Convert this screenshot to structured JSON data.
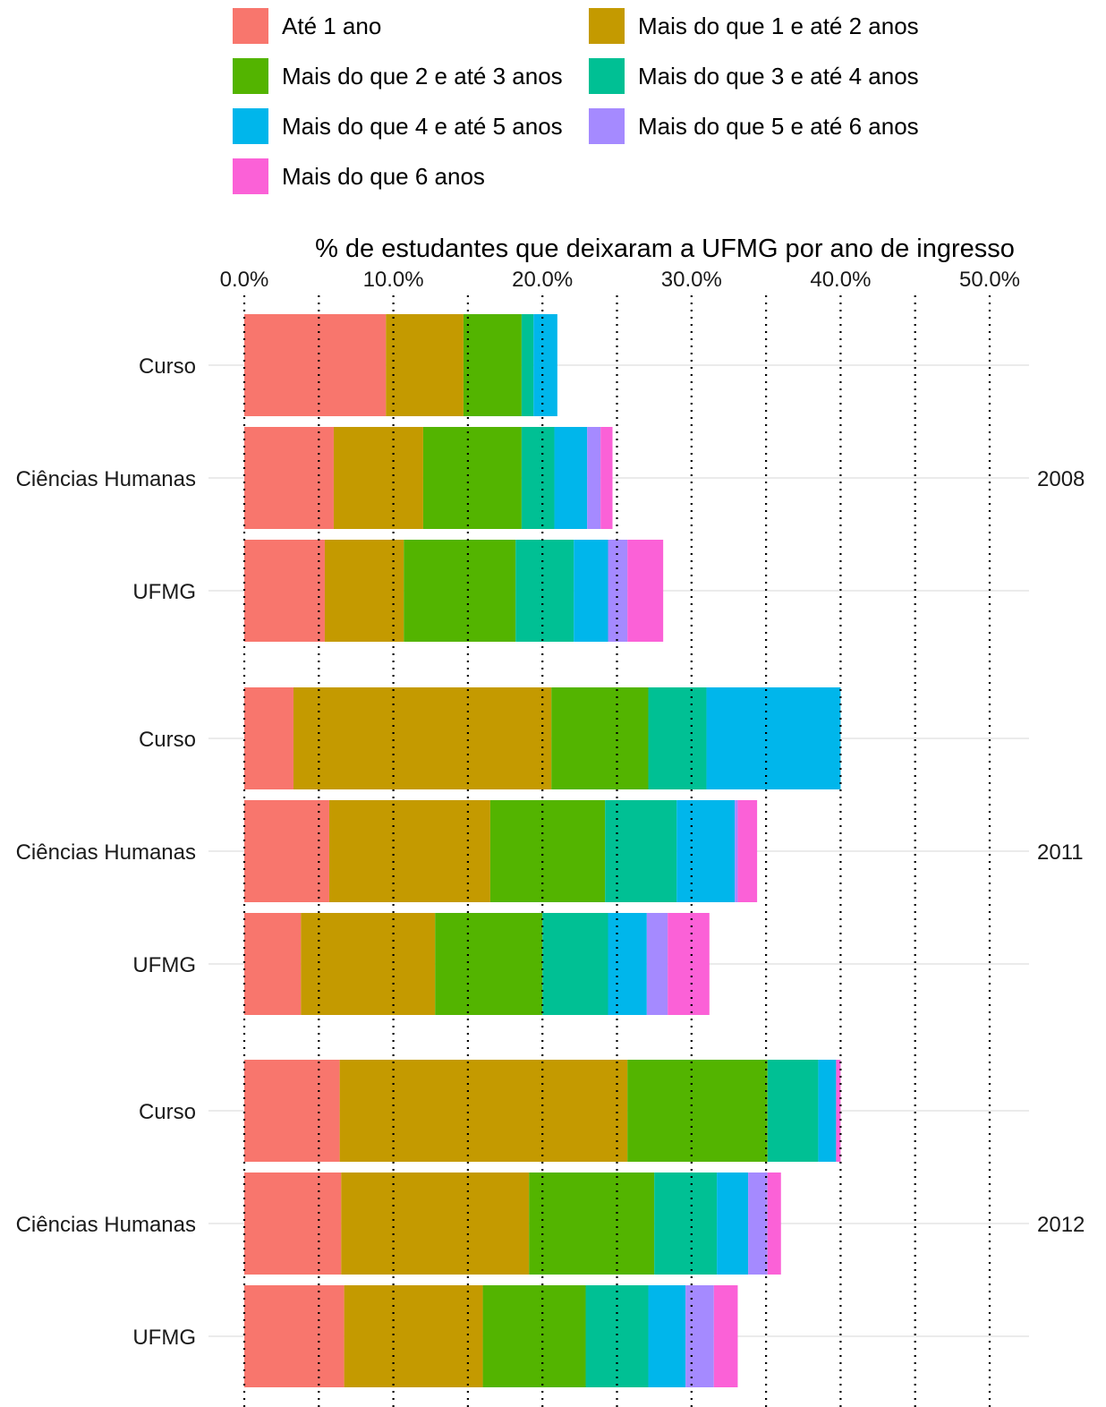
{
  "chart_data": {
    "type": "bar",
    "orientation": "horizontal",
    "stacked": true,
    "title": "",
    "xlabel": "% de estudantes que deixaram a UFMG por ano de ingresso",
    "xlabel_position": "top",
    "ylabel": "",
    "xlim": [
      0,
      52
    ],
    "x_ticks": [
      0,
      10,
      20,
      30,
      40,
      50
    ],
    "x_tick_labels": [
      "0.0%",
      "10.0%",
      "20.0%",
      "30.0%",
      "40.0%",
      "50.0%"
    ],
    "grid": true,
    "grid_style": "dotted vertical lines at every 5%",
    "legend_position": "top",
    "categories": [
      "Curso",
      "Ciências Humanas",
      "UFMG"
    ],
    "series": [
      {
        "name": "Até 1 ano",
        "color": "#F8766D"
      },
      {
        "name": "Mais do que 1 e até 2 anos",
        "color": "#C49A00"
      },
      {
        "name": "Mais do que 2 e até 3 anos",
        "color": "#53B400"
      },
      {
        "name": "Mais do que 3 e até 4 anos",
        "color": "#00C094"
      },
      {
        "name": "Mais do que 4 e até 5 anos",
        "color": "#00B6EB"
      },
      {
        "name": "Mais do que 5 e até 6 anos",
        "color": "#A58AFF"
      },
      {
        "name": "Mais do que 6 anos",
        "color": "#FB61D7"
      }
    ],
    "facets": [
      {
        "label": "2008",
        "bars": [
          {
            "category": "Curso",
            "values": [
              9.5,
              5.2,
              3.9,
              0.8,
              1.6,
              0.0,
              0.0
            ]
          },
          {
            "category": "Ciências Humanas",
            "values": [
              6.0,
              6.0,
              6.6,
              2.2,
              2.2,
              0.9,
              0.8
            ]
          },
          {
            "category": "UFMG",
            "values": [
              5.4,
              5.3,
              7.5,
              3.9,
              2.3,
              1.3,
              2.4
            ]
          }
        ]
      },
      {
        "label": "2011",
        "bars": [
          {
            "category": "Curso",
            "values": [
              3.3,
              17.3,
              6.5,
              3.9,
              9.0,
              0.0,
              0.0
            ]
          },
          {
            "category": "Ciências Humanas",
            "values": [
              5.7,
              10.8,
              7.7,
              4.8,
              3.9,
              0.2,
              1.3
            ]
          },
          {
            "category": "UFMG",
            "values": [
              3.8,
              9.0,
              7.2,
              4.4,
              2.6,
              1.4,
              2.8
            ]
          }
        ]
      },
      {
        "label": "2012",
        "bars": [
          {
            "category": "Curso",
            "values": [
              6.4,
              19.3,
              9.4,
              3.4,
              1.2,
              0.0,
              0.3
            ]
          },
          {
            "category": "Ciências Humanas",
            "values": [
              6.5,
              12.6,
              8.4,
              4.2,
              2.1,
              1.3,
              0.9
            ]
          },
          {
            "category": "UFMG",
            "values": [
              6.7,
              9.3,
              6.9,
              4.2,
              2.5,
              1.9,
              1.6
            ]
          }
        ]
      }
    ]
  }
}
